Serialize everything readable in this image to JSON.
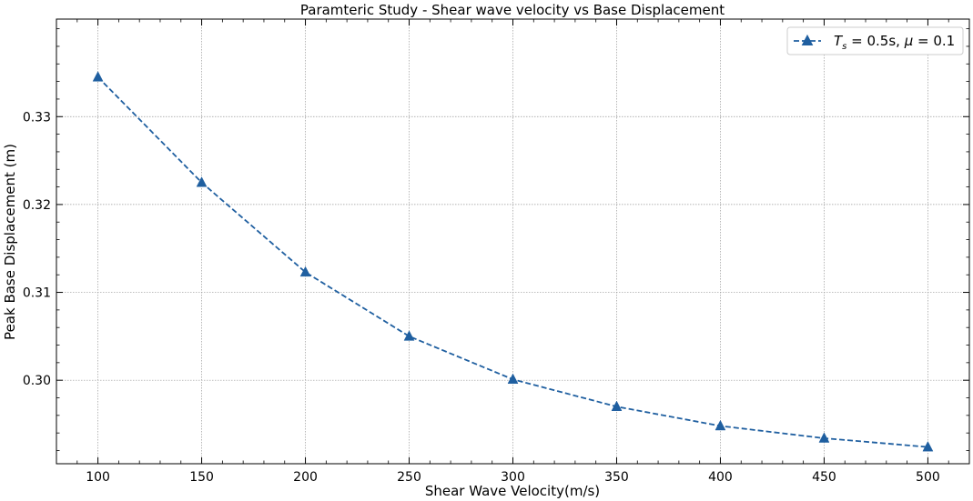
{
  "chart_data": {
    "type": "line",
    "title": "Paramteric Study - Shear wave velocity vs Base Displacement",
    "xlabel": "Shear Wave Velocity(m/s)",
    "ylabel": "Peak Base Displacement (m)",
    "x": [
      100,
      150,
      200,
      250,
      300,
      350,
      400,
      450,
      500
    ],
    "series": [
      {
        "name": "T_s = 0.5s, μ = 0.1",
        "name_parts": {
          "t": "T",
          "sub": "s",
          "rest1": " = 0.5s, ",
          "mu": "μ",
          "rest2": " = 0.1"
        },
        "values": [
          0.3345,
          0.3225,
          0.3123,
          0.305,
          0.3001,
          0.297,
          0.2948,
          0.2934,
          0.2924
        ],
        "color": "#1f5fa0",
        "marker": "triangle",
        "linestyle": "dashed"
      }
    ],
    "xticks": [
      100,
      150,
      200,
      250,
      300,
      350,
      400,
      450,
      500
    ],
    "yticks": [
      0.3,
      0.31,
      0.32,
      0.33
    ],
    "xtick_labels": [
      "100",
      "150",
      "200",
      "250",
      "300",
      "350",
      "400",
      "450",
      "500"
    ],
    "ytick_labels": [
      "0.30",
      "0.31",
      "0.32",
      "0.33"
    ],
    "xlim": [
      80,
      520
    ],
    "ylim": [
      0.2905,
      0.3411
    ],
    "grid": true,
    "legend_position": "top-right"
  }
}
